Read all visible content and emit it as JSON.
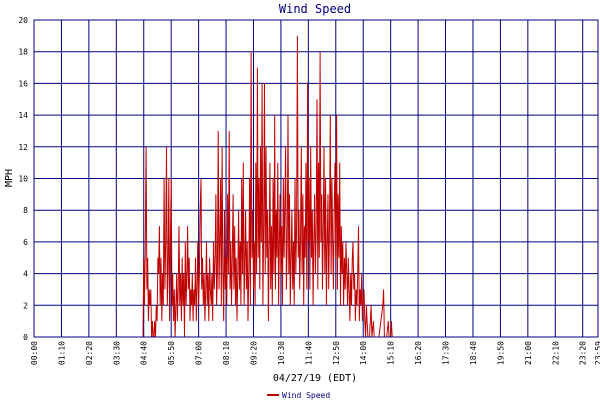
{
  "chart_data": {
    "type": "line",
    "title": "Wind Speed",
    "xlabel": "04/27/19 (EDT)",
    "ylabel": "MPH",
    "ylim": [
      0,
      20
    ],
    "y_ticks": [
      "0",
      "2",
      "4",
      "6",
      "8",
      "10",
      "12",
      "14",
      "16",
      "18",
      "20"
    ],
    "x_tick_labels": [
      "00:00",
      "01:10",
      "02:20",
      "03:30",
      "04:40",
      "05:50",
      "07:00",
      "08:10",
      "09:20",
      "10:30",
      "11:40",
      "12:50",
      "14:00",
      "15:10",
      "16:20",
      "17:30",
      "18:40",
      "19:50",
      "21:00",
      "22:10",
      "23:20",
      "23:59"
    ],
    "x_range_minutes": [
      0,
      1439
    ],
    "grid": true,
    "legend_position": "bottom-center",
    "series": [
      {
        "name": "Wind Speed",
        "color": "#c00000",
        "points": [
          [
            0,
            0
          ],
          [
            60,
            0
          ],
          [
            120,
            0
          ],
          [
            180,
            0
          ],
          [
            240,
            0
          ],
          [
            278,
            0
          ],
          [
            280,
            5
          ],
          [
            282,
            2
          ],
          [
            284,
            6
          ],
          [
            286,
            12
          ],
          [
            288,
            3
          ],
          [
            290,
            5
          ],
          [
            292,
            1
          ],
          [
            294,
            3
          ],
          [
            296,
            2
          ],
          [
            298,
            3
          ],
          [
            300,
            0
          ],
          [
            302,
            1
          ],
          [
            304,
            0
          ],
          [
            306,
            0
          ],
          [
            308,
            1
          ],
          [
            310,
            0
          ],
          [
            312,
            2
          ],
          [
            314,
            1
          ],
          [
            316,
            5
          ],
          [
            318,
            4
          ],
          [
            320,
            7
          ],
          [
            322,
            2
          ],
          [
            324,
            5
          ],
          [
            326,
            1
          ],
          [
            328,
            4
          ],
          [
            330,
            2
          ],
          [
            332,
            10
          ],
          [
            334,
            3
          ],
          [
            336,
            6
          ],
          [
            338,
            12
          ],
          [
            340,
            2
          ],
          [
            342,
            4
          ],
          [
            344,
            10
          ],
          [
            346,
            1
          ],
          [
            348,
            6
          ],
          [
            350,
            10
          ],
          [
            352,
            2
          ],
          [
            354,
            4
          ],
          [
            356,
            1
          ],
          [
            358,
            3
          ],
          [
            360,
            0
          ],
          [
            362,
            2
          ],
          [
            364,
            4
          ],
          [
            366,
            1
          ],
          [
            368,
            3
          ],
          [
            370,
            7
          ],
          [
            372,
            2
          ],
          [
            374,
            4
          ],
          [
            376,
            1
          ],
          [
            378,
            5
          ],
          [
            380,
            2
          ],
          [
            382,
            4
          ],
          [
            384,
            0
          ],
          [
            386,
            6
          ],
          [
            388,
            2
          ],
          [
            390,
            4
          ],
          [
            392,
            7
          ],
          [
            394,
            3
          ],
          [
            396,
            5
          ],
          [
            398,
            1
          ],
          [
            400,
            3
          ],
          [
            402,
            2
          ],
          [
            404,
            4
          ],
          [
            406,
            1
          ],
          [
            408,
            3
          ],
          [
            410,
            2
          ],
          [
            412,
            5
          ],
          [
            414,
            1
          ],
          [
            416,
            3
          ],
          [
            418,
            6
          ],
          [
            420,
            2
          ],
          [
            422,
            4
          ],
          [
            424,
            8
          ],
          [
            426,
            10
          ],
          [
            428,
            3
          ],
          [
            430,
            5
          ],
          [
            432,
            2
          ],
          [
            434,
            4
          ],
          [
            436,
            1
          ],
          [
            438,
            3
          ],
          [
            440,
            6
          ],
          [
            442,
            2
          ],
          [
            444,
            4
          ],
          [
            446,
            1
          ],
          [
            448,
            5
          ],
          [
            450,
            3
          ],
          [
            452,
            2
          ],
          [
            454,
            4
          ],
          [
            456,
            1
          ],
          [
            458,
            6
          ],
          [
            460,
            3
          ],
          [
            462,
            5
          ],
          [
            464,
            9
          ],
          [
            466,
            2
          ],
          [
            468,
            4
          ],
          [
            470,
            13
          ],
          [
            472,
            3
          ],
          [
            474,
            6
          ],
          [
            476,
            10
          ],
          [
            478,
            2
          ],
          [
            480,
            12
          ],
          [
            482,
            4
          ],
          [
            484,
            1
          ],
          [
            486,
            8
          ],
          [
            488,
            3
          ],
          [
            490,
            5
          ],
          [
            492,
            2
          ],
          [
            494,
            9
          ],
          [
            496,
            4
          ],
          [
            498,
            13
          ],
          [
            500,
            3
          ],
          [
            502,
            6
          ],
          [
            504,
            2
          ],
          [
            506,
            5
          ],
          [
            508,
            9
          ],
          [
            510,
            3
          ],
          [
            512,
            7
          ],
          [
            514,
            2
          ],
          [
            516,
            5
          ],
          [
            518,
            1
          ],
          [
            520,
            4
          ],
          [
            522,
            8
          ],
          [
            524,
            3
          ],
          [
            526,
            6
          ],
          [
            528,
            2
          ],
          [
            530,
            10
          ],
          [
            532,
            4
          ],
          [
            534,
            11
          ],
          [
            536,
            2
          ],
          [
            538,
            5
          ],
          [
            540,
            8
          ],
          [
            542,
            3
          ],
          [
            544,
            6
          ],
          [
            546,
            1
          ],
          [
            548,
            4
          ],
          [
            550,
            10
          ],
          [
            552,
            2
          ],
          [
            554,
            18
          ],
          [
            556,
            5
          ],
          [
            558,
            8
          ],
          [
            560,
            3
          ],
          [
            562,
            6
          ],
          [
            564,
            2
          ],
          [
            566,
            11
          ],
          [
            568,
            4
          ],
          [
            570,
            17
          ],
          [
            572,
            5
          ],
          [
            574,
            10
          ],
          [
            576,
            3
          ],
          [
            578,
            12
          ],
          [
            580,
            6
          ],
          [
            582,
            16
          ],
          [
            584,
            2
          ],
          [
            586,
            7
          ],
          [
            588,
            16
          ],
          [
            590,
            4
          ],
          [
            592,
            12
          ],
          [
            594,
            5
          ],
          [
            596,
            8
          ],
          [
            598,
            1
          ],
          [
            600,
            6
          ],
          [
            602,
            11
          ],
          [
            604,
            3
          ],
          [
            606,
            7
          ],
          [
            608,
            2
          ],
          [
            610,
            10
          ],
          [
            612,
            4
          ],
          [
            614,
            14
          ],
          [
            616,
            3
          ],
          [
            618,
            8
          ],
          [
            620,
            5
          ],
          [
            622,
            11
          ],
          [
            624,
            2
          ],
          [
            626,
            6
          ],
          [
            628,
            9
          ],
          [
            630,
            4
          ],
          [
            632,
            7
          ],
          [
            634,
            2
          ],
          [
            636,
            10
          ],
          [
            638,
            5
          ],
          [
            640,
            8
          ],
          [
            642,
            12
          ],
          [
            644,
            3
          ],
          [
            646,
            6
          ],
          [
            648,
            14
          ],
          [
            650,
            4
          ],
          [
            652,
            9
          ],
          [
            654,
            2
          ],
          [
            656,
            5
          ],
          [
            658,
            8
          ],
          [
            660,
            3
          ],
          [
            662,
            6
          ],
          [
            664,
            2
          ],
          [
            666,
            10
          ],
          [
            668,
            4
          ],
          [
            670,
            7
          ],
          [
            672,
            19
          ],
          [
            674,
            5
          ],
          [
            676,
            8
          ],
          [
            678,
            3
          ],
          [
            680,
            6
          ],
          [
            682,
            12
          ],
          [
            684,
            4
          ],
          [
            686,
            9
          ],
          [
            688,
            2
          ],
          [
            690,
            7
          ],
          [
            692,
            5
          ],
          [
            694,
            11
          ],
          [
            696,
            3
          ],
          [
            698,
            16
          ],
          [
            700,
            6
          ],
          [
            702,
            10
          ],
          [
            704,
            3
          ],
          [
            706,
            12
          ],
          [
            708,
            5
          ],
          [
            710,
            8
          ],
          [
            712,
            2
          ],
          [
            714,
            6
          ],
          [
            716,
            9
          ],
          [
            718,
            4
          ],
          [
            720,
            7
          ],
          [
            722,
            15
          ],
          [
            724,
            3
          ],
          [
            726,
            11
          ],
          [
            728,
            5
          ],
          [
            730,
            18
          ],
          [
            732,
            6
          ],
          [
            734,
            9
          ],
          [
            736,
            3
          ],
          [
            738,
            7
          ],
          [
            740,
            12
          ],
          [
            742,
            4
          ],
          [
            744,
            10
          ],
          [
            746,
            2
          ],
          [
            748,
            6
          ],
          [
            750,
            9
          ],
          [
            752,
            3
          ],
          [
            754,
            7
          ],
          [
            756,
            14
          ],
          [
            758,
            4
          ],
          [
            760,
            10
          ],
          [
            762,
            6
          ],
          [
            764,
            3
          ],
          [
            766,
            8
          ],
          [
            768,
            11
          ],
          [
            770,
            5
          ],
          [
            772,
            14
          ],
          [
            774,
            3
          ],
          [
            776,
            9
          ],
          [
            778,
            5
          ],
          [
            780,
            11
          ],
          [
            782,
            2
          ],
          [
            784,
            7
          ],
          [
            786,
            4
          ],
          [
            788,
            6
          ],
          [
            790,
            2
          ],
          [
            792,
            5
          ],
          [
            794,
            3
          ],
          [
            796,
            6
          ],
          [
            798,
            4
          ],
          [
            800,
            2
          ],
          [
            802,
            5
          ],
          [
            804,
            3
          ],
          [
            806,
            1
          ],
          [
            808,
            4
          ],
          [
            810,
            2
          ],
          [
            812,
            5
          ],
          [
            814,
            6
          ],
          [
            816,
            3
          ],
          [
            818,
            4
          ],
          [
            820,
            1
          ],
          [
            822,
            3
          ],
          [
            824,
            2
          ],
          [
            826,
            4
          ],
          [
            828,
            7
          ],
          [
            830,
            1
          ],
          [
            832,
            3
          ],
          [
            834,
            2
          ],
          [
            836,
            4
          ],
          [
            838,
            1
          ],
          [
            840,
            2
          ],
          [
            842,
            3
          ],
          [
            844,
            1
          ],
          [
            846,
            0
          ],
          [
            848,
            2
          ],
          [
            850,
            1
          ],
          [
            852,
            0
          ],
          [
            856,
            0
          ],
          [
            860,
            2
          ],
          [
            862,
            0
          ],
          [
            866,
            1
          ],
          [
            868,
            0
          ],
          [
            880,
            0
          ],
          [
            890,
            2
          ],
          [
            892,
            3
          ],
          [
            894,
            0
          ],
          [
            900,
            0
          ],
          [
            904,
            1
          ],
          [
            906,
            0
          ],
          [
            910,
            0
          ],
          [
            912,
            1
          ],
          [
            914,
            0
          ],
          [
            1439,
            0
          ]
        ]
      }
    ]
  }
}
